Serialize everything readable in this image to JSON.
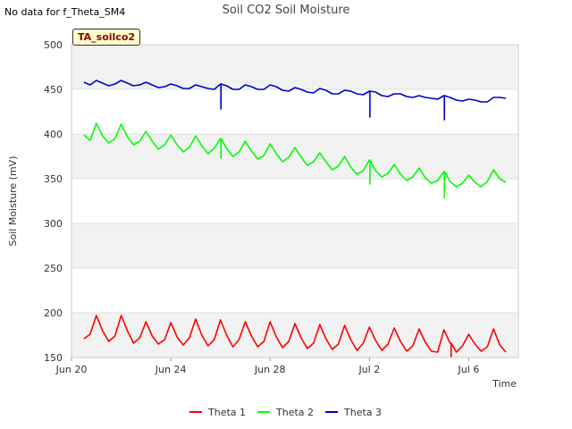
{
  "header": {
    "no_data_note": "No data for f_Theta_SM4",
    "tag_label": "TA_soilco2"
  },
  "chart_data": {
    "type": "line",
    "title": "Soil CO2 Soil Moisture",
    "xlabel": "Time",
    "ylabel": "Soil Moisture (mV)",
    "ylim": [
      150,
      500
    ],
    "y_ticks": [
      150,
      200,
      250,
      300,
      350,
      400,
      450,
      500
    ],
    "xlim": [
      "2024-06-20",
      "2024-07-08"
    ],
    "x_ticks": [
      {
        "date": "2024-06-20",
        "label": "Jun 20"
      },
      {
        "date": "2024-06-24",
        "label": "Jun 24"
      },
      {
        "date": "2024-06-28",
        "label": "Jun 28"
      },
      {
        "date": "2024-07-02",
        "label": "Jul 2"
      },
      {
        "date": "2024-07-06",
        "label": "Jul 6"
      }
    ],
    "grid": "horizontal alternating bands",
    "legend_position": "bottom-center",
    "series": [
      {
        "name": "Theta 1",
        "color": "#ff0000",
        "x": [
          "2024-06-20 12:00",
          "2024-06-20 18:00",
          "2024-06-21 00:00",
          "2024-06-21 06:00",
          "2024-06-21 12:00",
          "2024-06-21 18:00",
          "2024-06-22 00:00",
          "2024-06-22 06:00",
          "2024-06-22 12:00",
          "2024-06-22 18:00",
          "2024-06-23 00:00",
          "2024-06-23 06:00",
          "2024-06-23 12:00",
          "2024-06-23 18:00",
          "2024-06-24 00:00",
          "2024-06-24 06:00",
          "2024-06-24 12:00",
          "2024-06-24 18:00",
          "2024-06-25 00:00",
          "2024-06-25 06:00",
          "2024-06-25 12:00",
          "2024-06-25 18:00",
          "2024-06-26 00:00",
          "2024-06-26 06:00",
          "2024-06-26 12:00",
          "2024-06-26 18:00",
          "2024-06-27 00:00",
          "2024-06-27 06:00",
          "2024-06-27 12:00",
          "2024-06-27 18:00",
          "2024-06-28 00:00",
          "2024-06-28 06:00",
          "2024-06-28 12:00",
          "2024-06-28 18:00",
          "2024-06-29 00:00",
          "2024-06-29 06:00",
          "2024-06-29 12:00",
          "2024-06-29 18:00",
          "2024-06-30 00:00",
          "2024-06-30 06:00",
          "2024-06-30 12:00",
          "2024-06-30 18:00",
          "2024-07-01 00:00",
          "2024-07-01 06:00",
          "2024-07-01 12:00",
          "2024-07-01 18:00",
          "2024-07-02 00:00",
          "2024-07-02 06:00",
          "2024-07-02 12:00",
          "2024-07-02 18:00",
          "2024-07-03 00:00",
          "2024-07-03 06:00",
          "2024-07-03 12:00",
          "2024-07-03 18:00",
          "2024-07-04 00:00",
          "2024-07-04 06:00",
          "2024-07-04 12:00",
          "2024-07-04 18:00",
          "2024-07-05 00:00",
          "2024-07-05 06:00",
          "2024-07-05 12:00",
          "2024-07-05 18:00",
          "2024-07-06 00:00",
          "2024-07-06 06:00",
          "2024-07-06 12:00",
          "2024-07-06 18:00",
          "2024-07-07 00:00",
          "2024-07-07 06:00",
          "2024-07-07 12:00"
        ],
        "values": [
          171,
          176,
          197,
          180,
          168,
          174,
          197,
          180,
          166,
          172,
          190,
          174,
          165,
          170,
          189,
          173,
          164,
          172,
          193,
          175,
          163,
          170,
          192,
          175,
          162,
          170,
          190,
          174,
          162,
          168,
          190,
          173,
          161,
          168,
          188,
          172,
          160,
          166,
          187,
          171,
          159,
          165,
          186,
          170,
          158,
          166,
          184,
          169,
          158,
          165,
          183,
          168,
          157,
          163,
          182,
          167,
          157,
          156,
          181,
          166,
          156,
          163,
          176,
          165,
          157,
          162,
          182,
          164,
          156
        ],
        "spikes": [
          {
            "x": "2024-07-05 07:00",
            "value": 151
          }
        ]
      },
      {
        "name": "Theta 2",
        "color": "#00ff00",
        "x": [
          "2024-06-20 12:00",
          "2024-06-20 18:00",
          "2024-06-21 00:00",
          "2024-06-21 06:00",
          "2024-06-21 12:00",
          "2024-06-21 18:00",
          "2024-06-22 00:00",
          "2024-06-22 06:00",
          "2024-06-22 12:00",
          "2024-06-22 18:00",
          "2024-06-23 00:00",
          "2024-06-23 06:00",
          "2024-06-23 12:00",
          "2024-06-23 18:00",
          "2024-06-24 00:00",
          "2024-06-24 06:00",
          "2024-06-24 12:00",
          "2024-06-24 18:00",
          "2024-06-25 00:00",
          "2024-06-25 06:00",
          "2024-06-25 12:00",
          "2024-06-25 18:00",
          "2024-06-26 00:00",
          "2024-06-26 06:00",
          "2024-06-26 12:00",
          "2024-06-26 18:00",
          "2024-06-27 00:00",
          "2024-06-27 06:00",
          "2024-06-27 12:00",
          "2024-06-27 18:00",
          "2024-06-28 00:00",
          "2024-06-28 06:00",
          "2024-06-28 12:00",
          "2024-06-28 18:00",
          "2024-06-29 00:00",
          "2024-06-29 06:00",
          "2024-06-29 12:00",
          "2024-06-29 18:00",
          "2024-06-30 00:00",
          "2024-06-30 06:00",
          "2024-06-30 12:00",
          "2024-06-30 18:00",
          "2024-07-01 00:00",
          "2024-07-01 06:00",
          "2024-07-01 12:00",
          "2024-07-01 18:00",
          "2024-07-02 00:00",
          "2024-07-02 06:00",
          "2024-07-02 12:00",
          "2024-07-02 18:00",
          "2024-07-03 00:00",
          "2024-07-03 06:00",
          "2024-07-03 12:00",
          "2024-07-03 18:00",
          "2024-07-04 00:00",
          "2024-07-04 06:00",
          "2024-07-04 12:00",
          "2024-07-04 18:00",
          "2024-07-05 00:00",
          "2024-07-05 06:00",
          "2024-07-05 12:00",
          "2024-07-05 18:00",
          "2024-07-06 00:00",
          "2024-07-06 06:00",
          "2024-07-06 12:00",
          "2024-07-06 18:00",
          "2024-07-07 00:00",
          "2024-07-07 06:00",
          "2024-07-07 12:00"
        ],
        "values": [
          399,
          393,
          412,
          398,
          390,
          395,
          411,
          397,
          388,
          392,
          403,
          392,
          383,
          388,
          399,
          388,
          380,
          385,
          398,
          387,
          378,
          384,
          395,
          384,
          375,
          380,
          392,
          381,
          372,
          376,
          389,
          378,
          369,
          374,
          385,
          374,
          365,
          369,
          379,
          369,
          360,
          364,
          375,
          363,
          355,
          359,
          371,
          359,
          352,
          356,
          366,
          355,
          348,
          352,
          362,
          351,
          345,
          348,
          358,
          347,
          341,
          345,
          354,
          346,
          341,
          347,
          360,
          350,
          346
        ],
        "spikes": [
          {
            "x": "2024-06-26 00:30",
            "value": 373
          },
          {
            "x": "2024-07-02 00:30",
            "value": 344
          },
          {
            "x": "2024-07-05 00:30",
            "value": 329
          }
        ]
      },
      {
        "name": "Theta 3",
        "color": "#0000cc",
        "x": [
          "2024-06-20 12:00",
          "2024-06-20 18:00",
          "2024-06-21 00:00",
          "2024-06-21 06:00",
          "2024-06-21 12:00",
          "2024-06-21 18:00",
          "2024-06-22 00:00",
          "2024-06-22 06:00",
          "2024-06-22 12:00",
          "2024-06-22 18:00",
          "2024-06-23 00:00",
          "2024-06-23 06:00",
          "2024-06-23 12:00",
          "2024-06-23 18:00",
          "2024-06-24 00:00",
          "2024-06-24 06:00",
          "2024-06-24 12:00",
          "2024-06-24 18:00",
          "2024-06-25 00:00",
          "2024-06-25 06:00",
          "2024-06-25 12:00",
          "2024-06-25 18:00",
          "2024-06-26 00:00",
          "2024-06-26 06:00",
          "2024-06-26 12:00",
          "2024-06-26 18:00",
          "2024-06-27 00:00",
          "2024-06-27 06:00",
          "2024-06-27 12:00",
          "2024-06-27 18:00",
          "2024-06-28 00:00",
          "2024-06-28 06:00",
          "2024-06-28 12:00",
          "2024-06-28 18:00",
          "2024-06-29 00:00",
          "2024-06-29 06:00",
          "2024-06-29 12:00",
          "2024-06-29 18:00",
          "2024-06-30 00:00",
          "2024-06-30 06:00",
          "2024-06-30 12:00",
          "2024-06-30 18:00",
          "2024-07-01 00:00",
          "2024-07-01 06:00",
          "2024-07-01 12:00",
          "2024-07-01 18:00",
          "2024-07-02 00:00",
          "2024-07-02 06:00",
          "2024-07-02 12:00",
          "2024-07-02 18:00",
          "2024-07-03 00:00",
          "2024-07-03 06:00",
          "2024-07-03 12:00",
          "2024-07-03 18:00",
          "2024-07-04 00:00",
          "2024-07-04 06:00",
          "2024-07-04 12:00",
          "2024-07-04 18:00",
          "2024-07-05 00:00",
          "2024-07-05 06:00",
          "2024-07-05 12:00",
          "2024-07-05 18:00",
          "2024-07-06 00:00",
          "2024-07-06 06:00",
          "2024-07-06 12:00",
          "2024-07-06 18:00",
          "2024-07-07 00:00",
          "2024-07-07 06:00",
          "2024-07-07 12:00"
        ],
        "values": [
          458,
          455,
          460,
          457,
          454,
          456,
          460,
          457,
          454,
          455,
          458,
          455,
          452,
          453,
          456,
          454,
          451,
          451,
          455,
          453,
          451,
          450,
          456,
          454,
          450,
          450,
          455,
          453,
          450,
          450,
          455,
          453,
          449,
          448,
          452,
          450,
          447,
          446,
          451,
          449,
          445,
          445,
          449,
          448,
          445,
          444,
          448,
          447,
          443,
          442,
          445,
          445,
          442,
          441,
          443,
          441,
          440,
          439,
          443,
          441,
          438,
          437,
          439,
          438,
          436,
          436,
          441,
          441,
          440
        ],
        "spikes": [
          {
            "x": "2024-06-26 00:30",
            "value": 428
          },
          {
            "x": "2024-07-02 00:30",
            "value": 419
          },
          {
            "x": "2024-07-05 00:30",
            "value": 416
          }
        ]
      }
    ]
  }
}
